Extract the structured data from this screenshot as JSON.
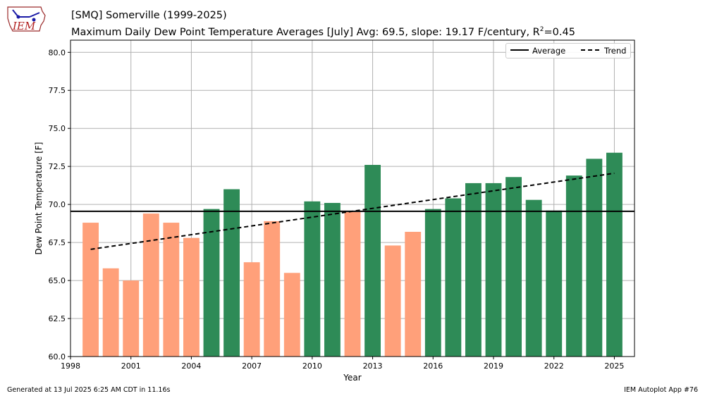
{
  "header": {
    "logo_text": "IEM",
    "title_line1": "[SMQ] Somerville (1999-2025)",
    "title_line2_pre": "Maximum Daily Dew Point Temperature Averages [July]  Avg: 69.5, slope: 19.17 F/century, R",
    "title_line2_sup": "2",
    "title_line2_post": "=0.45"
  },
  "footer": {
    "left": "Generated at 13 Jul 2025 6:25 AM CDT in 11.16s",
    "right": "IEM Autoplot App #76"
  },
  "legend": {
    "average_label": "Average",
    "trend_label": "Trend"
  },
  "colors": {
    "above_avg": "#2e8b57",
    "below_avg": "#ffa07a",
    "average_line": "#000000",
    "trend_line": "#000000",
    "grid": "#b0b0b0"
  },
  "chart_data": {
    "type": "bar",
    "xlabel": "Year",
    "ylabel": "Dew Point Temperature [F]",
    "xlim": [
      1998,
      2026
    ],
    "ylim": [
      60.0,
      80.8
    ],
    "xticks": [
      1998,
      2001,
      2004,
      2007,
      2010,
      2013,
      2016,
      2019,
      2022,
      2025
    ],
    "yticks": [
      60.0,
      62.5,
      65.0,
      67.5,
      70.0,
      72.5,
      75.0,
      77.5,
      80.0
    ],
    "grid": true,
    "legend_position": "top-right",
    "x": [
      1999,
      2000,
      2001,
      2002,
      2003,
      2004,
      2005,
      2006,
      2007,
      2008,
      2009,
      2010,
      2011,
      2012,
      2013,
      2014,
      2015,
      2016,
      2017,
      2018,
      2019,
      2020,
      2021,
      2022,
      2023,
      2024,
      2025
    ],
    "values": [
      68.8,
      65.8,
      65.0,
      69.4,
      68.8,
      67.8,
      69.7,
      71.0,
      66.2,
      68.9,
      65.5,
      70.2,
      70.1,
      69.5,
      72.6,
      67.3,
      68.2,
      69.7,
      70.4,
      71.4,
      71.4,
      71.8,
      70.3,
      69.6,
      71.9,
      73.0,
      73.4
    ],
    "average": 69.55,
    "trend": {
      "x": [
        1999,
        2025
      ],
      "y": [
        67.05,
        72.05
      ]
    }
  }
}
